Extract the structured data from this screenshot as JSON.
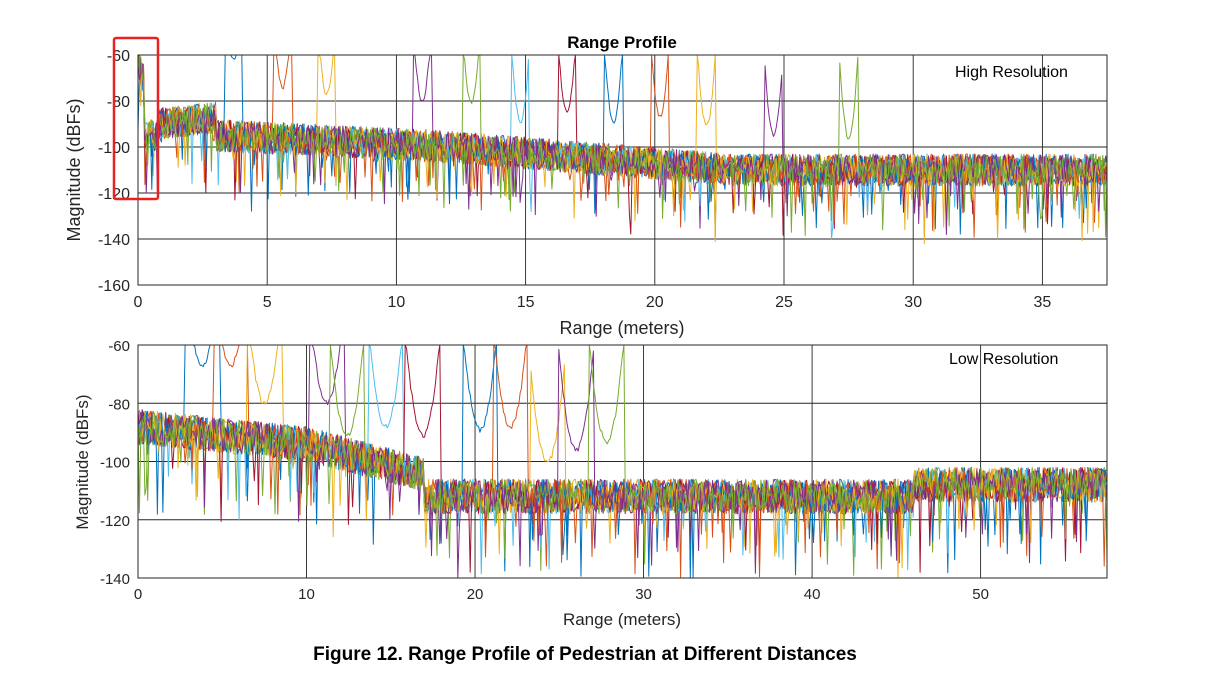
{
  "figure": {
    "caption": "Figure 12. Range Profile of Pedestrian at Different Distances"
  },
  "colors": {
    "series": [
      "#0072BD",
      "#D95319",
      "#EDB120",
      "#7E2F8E",
      "#77AC30",
      "#4DBEEE",
      "#A2142F"
    ],
    "highlight_box": "#e8221f",
    "grid": "#262626"
  },
  "chart_data": [
    {
      "type": "line",
      "title": "Range Profile",
      "xlabel": "Range (meters)",
      "ylabel": "Magnitude (dBFs)",
      "xlim": [
        0,
        37.5
      ],
      "ylim": [
        -160,
        -60
      ],
      "xticks": [
        0,
        5,
        10,
        15,
        20,
        25,
        30,
        35
      ],
      "yticks": [
        -60,
        -80,
        -100,
        -120,
        -140,
        -160
      ],
      "grid": true,
      "annotation": "High Resolution",
      "highlight_region": {
        "x": [
          0,
          0.85
        ],
        "y": [
          -122,
          -52
        ]
      },
      "series": [
        {
          "peak_x": 3.7,
          "peak_y": -62
        },
        {
          "peak_x": 5.6,
          "peak_y": -74
        },
        {
          "peak_x": 7.3,
          "peak_y": -77
        },
        {
          "peak_x": 11.0,
          "peak_y": -80
        },
        {
          "peak_x": 12.9,
          "peak_y": -81
        },
        {
          "peak_x": 14.8,
          "peak_y": -89
        },
        {
          "peak_x": 16.6,
          "peak_y": -85
        },
        {
          "peak_x": 18.4,
          "peak_y": -89
        },
        {
          "peak_x": 20.2,
          "peak_y": -87
        },
        {
          "peak_x": 22.0,
          "peak_y": -91
        },
        {
          "peak_x": 24.6,
          "peak_y": -95
        },
        {
          "peak_x": 27.5,
          "peak_y": -96
        }
      ]
    },
    {
      "type": "line",
      "title": "",
      "xlabel": "Range (meters)",
      "ylabel": "Magnitude (dBFs)",
      "xlim": [
        0,
        57.5
      ],
      "ylim": [
        -140,
        -60
      ],
      "xticks": [
        0,
        10,
        20,
        30,
        40,
        50
      ],
      "yticks": [
        -60,
        -80,
        -100,
        -120,
        -140
      ],
      "grid": true,
      "annotation": "Low Resolution",
      "series": [
        {
          "peak_x": 3.8,
          "peak_y": -67
        },
        {
          "peak_x": 5.5,
          "peak_y": -67
        },
        {
          "peak_x": 7.5,
          "peak_y": -80
        },
        {
          "peak_x": 11.2,
          "peak_y": -80
        },
        {
          "peak_x": 12.4,
          "peak_y": -91
        },
        {
          "peak_x": 14.7,
          "peak_y": -88
        },
        {
          "peak_x": 16.9,
          "peak_y": -91
        },
        {
          "peak_x": 20.3,
          "peak_y": -89
        },
        {
          "peak_x": 22.1,
          "peak_y": -88
        },
        {
          "peak_x": 24.3,
          "peak_y": -100
        },
        {
          "peak_x": 26.0,
          "peak_y": -96
        },
        {
          "peak_x": 27.8,
          "peak_y": -93
        }
      ]
    }
  ]
}
